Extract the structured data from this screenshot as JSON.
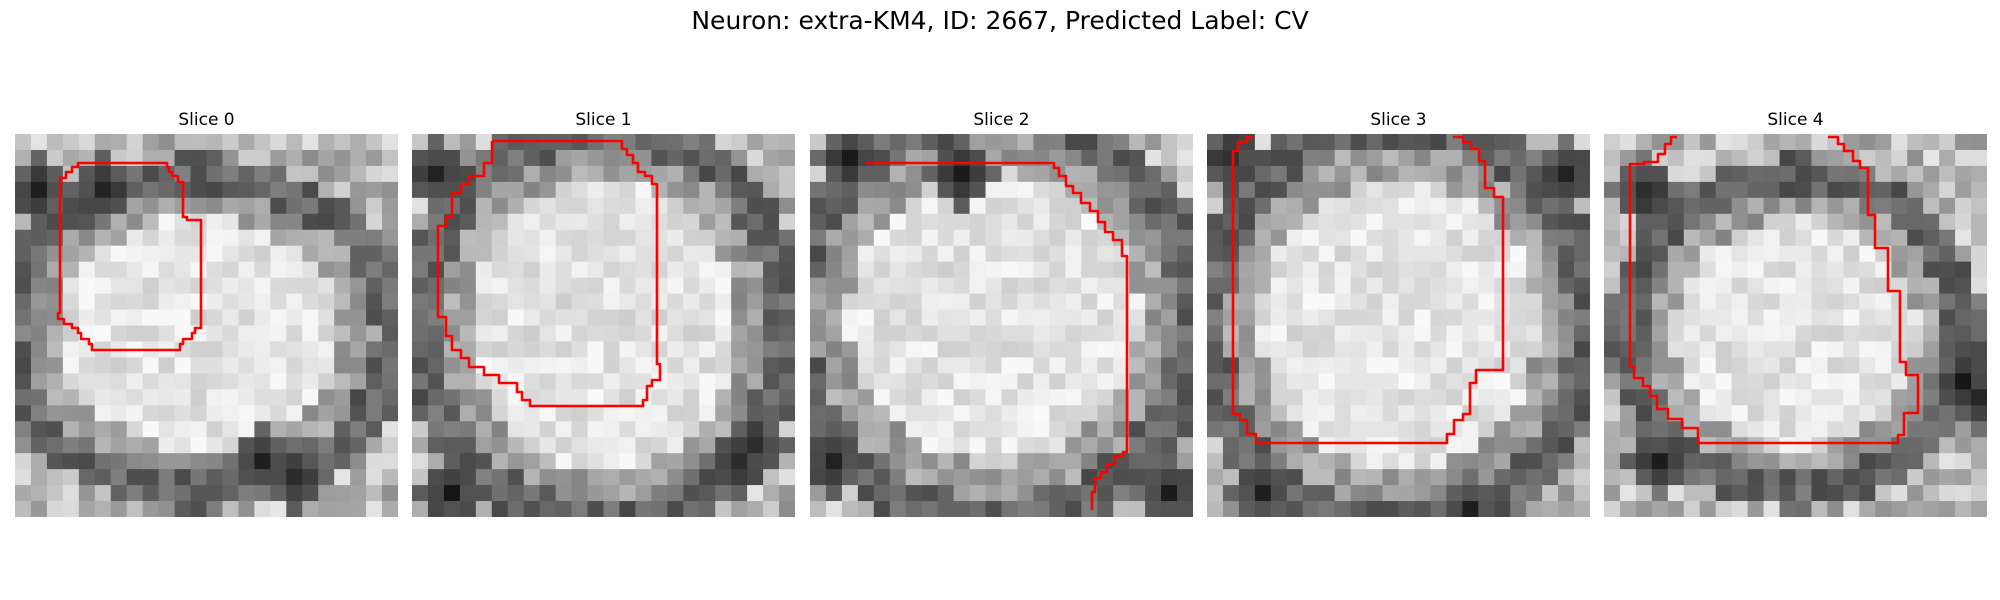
{
  "figure": {
    "title": "Neuron: extra-KM4, ID: 2667, Predicted Label: CV",
    "contour_color": "#ff0000",
    "colormap": "gray",
    "panels": [
      {
        "title": "Slice 0"
      },
      {
        "title": "Slice 1"
      },
      {
        "title": "Slice 2"
      },
      {
        "title": "Slice 3"
      },
      {
        "title": "Slice 4"
      }
    ]
  }
}
